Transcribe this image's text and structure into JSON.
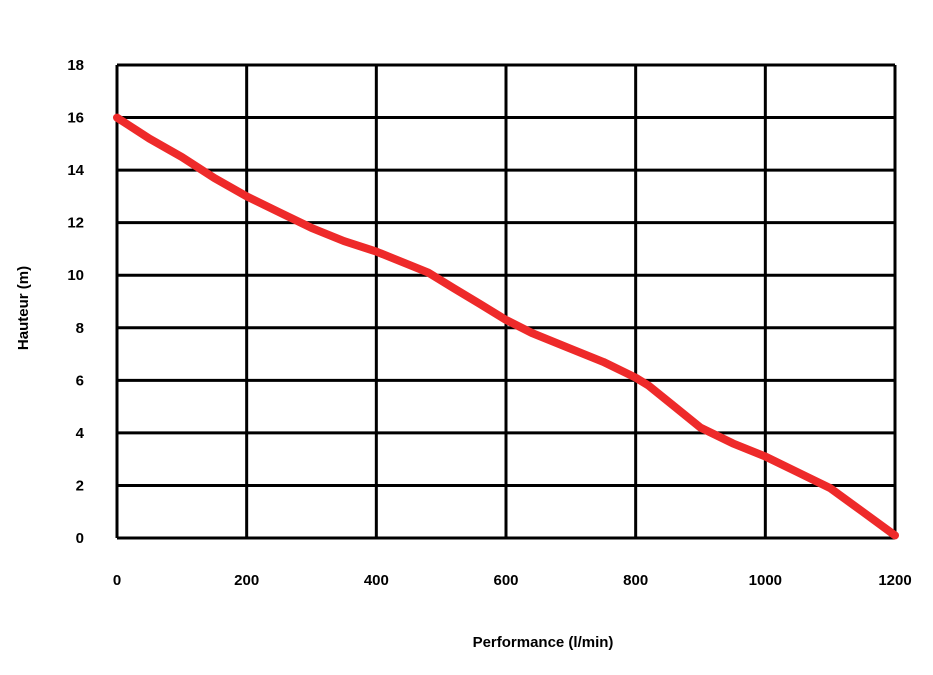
{
  "chart_data": {
    "type": "line",
    "title": "",
    "xlabel": "Performance (l/min)",
    "ylabel": "Hauteur (m)",
    "xlim": [
      0,
      1200
    ],
    "ylim": [
      0,
      18
    ],
    "x_ticks": [
      "0",
      "200",
      "400",
      "600",
      "800",
      "1000",
      "1200"
    ],
    "y_ticks": [
      "0",
      "2",
      "4",
      "6",
      "8",
      "10",
      "12",
      "14",
      "16",
      "18"
    ],
    "grid": true,
    "legend": "none",
    "colors": {
      "line": "#ee2a2a",
      "grid": "#000000",
      "background": "#ffffff"
    },
    "series": [
      {
        "x": [
          0,
          50,
          100,
          150,
          200,
          250,
          300,
          350,
          400,
          450,
          480,
          520,
          560,
          600,
          640,
          700,
          750,
          800,
          820,
          860,
          900,
          950,
          1000,
          1050,
          1100,
          1150,
          1200
        ],
        "values": [
          16.0,
          15.2,
          14.5,
          13.7,
          13.0,
          12.4,
          11.8,
          11.3,
          10.9,
          10.4,
          10.1,
          9.5,
          8.9,
          8.3,
          7.8,
          7.2,
          6.7,
          6.1,
          5.8,
          5.0,
          4.2,
          3.6,
          3.1,
          2.5,
          1.9,
          1.0,
          0.1
        ]
      }
    ]
  }
}
